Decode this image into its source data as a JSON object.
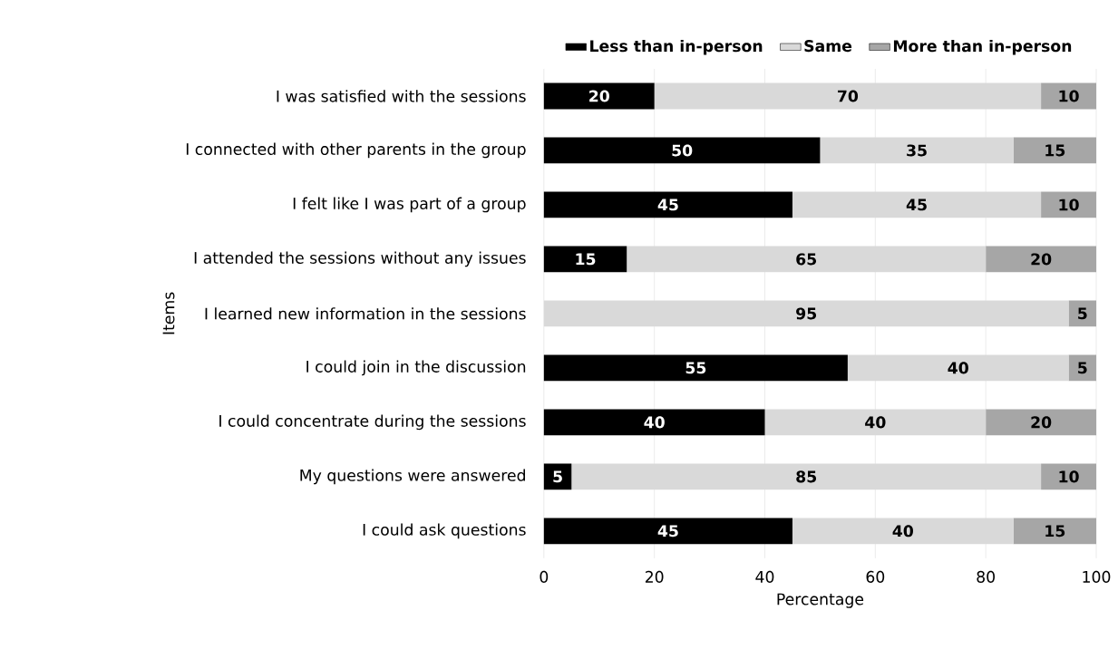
{
  "chart_data": {
    "type": "bar",
    "orientation": "horizontal",
    "stacked": true,
    "xlabel": "Percentage",
    "ylabel": "Items",
    "categories": [
      "I was satisfied with the sessions",
      "I connected with other parents in the group",
      "I felt like I was part of a group",
      "I attended the sessions without any issues",
      "I learned new information in the sessions",
      "I could join in the discussion",
      "I could concentrate during the sessions",
      "My questions were answered",
      "I could ask questions"
    ],
    "series": [
      {
        "name": "Less than in-person",
        "color": "#000000",
        "values": [
          20,
          50,
          45,
          15,
          0,
          55,
          40,
          5,
          45
        ],
        "value_labels": [
          "20",
          "50",
          "45",
          "15",
          null,
          "55",
          "40",
          "5",
          "45"
        ]
      },
      {
        "name": "Same",
        "color": "#d9d9d9",
        "values": [
          70,
          35,
          45,
          65,
          95,
          40,
          40,
          85,
          40
        ],
        "value_labels": [
          "70",
          "35",
          "45",
          "65",
          "95",
          "40",
          "40",
          "85",
          "40"
        ]
      },
      {
        "name": "More than in-person",
        "color": "#a6a6a6",
        "values": [
          10,
          15,
          10,
          20,
          5,
          5,
          20,
          10,
          15
        ],
        "value_labels": [
          "10",
          "15",
          "10",
          "20",
          "5",
          "5",
          "20",
          "10",
          "15"
        ]
      }
    ],
    "xlim": [
      0,
      100
    ],
    "xticks": [
      0,
      20,
      40,
      60,
      80,
      100
    ],
    "grid": "x",
    "legend": "top"
  }
}
